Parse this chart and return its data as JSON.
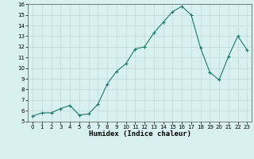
{
  "x": [
    0,
    1,
    2,
    3,
    4,
    5,
    6,
    7,
    8,
    9,
    10,
    11,
    12,
    13,
    14,
    15,
    16,
    17,
    18,
    19,
    20,
    21,
    22,
    23
  ],
  "y": [
    5.5,
    5.8,
    5.8,
    6.2,
    6.5,
    5.6,
    5.7,
    6.6,
    8.5,
    9.7,
    10.4,
    11.8,
    12.0,
    13.3,
    14.3,
    15.3,
    15.8,
    15.0,
    11.9,
    9.6,
    8.9,
    11.1,
    13.0,
    11.7
  ],
  "line_color": "#1a7a6a",
  "marker": "+",
  "marker_size": 3,
  "marker_edge_width": 0.8,
  "line_width": 0.8,
  "bg_color": "#d8f0f0",
  "grid_color": "#c0d8d8",
  "xlabel": "Humidex (Indice chaleur)",
  "ylim": [
    5,
    16
  ],
  "xlim": [
    -0.5,
    23.5
  ],
  "yticks": [
    5,
    6,
    7,
    8,
    9,
    10,
    11,
    12,
    13,
    14,
    15,
    16
  ],
  "xticks": [
    0,
    1,
    2,
    3,
    4,
    5,
    6,
    7,
    8,
    9,
    10,
    11,
    12,
    13,
    14,
    15,
    16,
    17,
    18,
    19,
    20,
    21,
    22,
    23
  ],
  "tick_fontsize": 5,
  "label_fontsize": 6.5
}
